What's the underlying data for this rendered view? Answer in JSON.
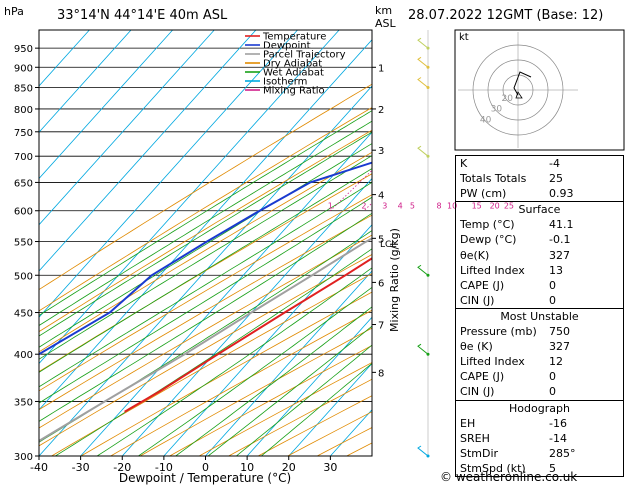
{
  "header": {
    "hpa_label": "hPa",
    "location": "33°14'N  44°14'E  40m  ASL",
    "km_label": "km",
    "asl_label": "ASL",
    "datetime": "28.07.2022  12GMT  (Base: 12)"
  },
  "chart_data": {
    "type": "skew-t",
    "xlabel": "Dewpoint / Temperature (°C)",
    "ylabel_right": "Mixing Ratio (g/kg)",
    "x_ticks": [
      -40,
      -30,
      -20,
      -10,
      0,
      10,
      20,
      30
    ],
    "pressure_ticks": [
      300,
      350,
      400,
      450,
      500,
      550,
      600,
      650,
      700,
      750,
      800,
      850,
      900,
      950
    ],
    "km_ticks": [
      {
        "label": "8",
        "p": 380
      },
      {
        "label": "7",
        "p": 435
      },
      {
        "label": "6",
        "p": 490
      },
      {
        "label": "5",
        "p": 555
      },
      {
        "label": "4",
        "p": 628
      },
      {
        "label": "3",
        "p": 712
      },
      {
        "label": "2",
        "p": 800
      },
      {
        "label": "1",
        "p": 900
      }
    ],
    "lcl_label": "LCL",
    "lcl_p": 548,
    "mixing_ratio_labels": [
      "1",
      "2",
      "3",
      "4",
      "5",
      "8",
      "10",
      "15",
      "20",
      "25"
    ],
    "mixing_ratio_values": [
      1,
      2,
      3,
      4,
      5,
      8,
      10,
      15,
      20,
      25
    ],
    "legend": [
      {
        "name": "Temperature",
        "color": "#e02020"
      },
      {
        "name": "Dewpoint",
        "color": "#1a3ad0"
      },
      {
        "name": "Parcel Trajectory",
        "color": "#a0a0a0"
      },
      {
        "name": "Dry Adiabat",
        "color": "#e08a00"
      },
      {
        "name": "Wet Adiabat",
        "color": "#18a018"
      },
      {
        "name": "Isotherm",
        "color": "#00a8e0"
      },
      {
        "name": "Mixing Ratio",
        "color": "#d0208a"
      }
    ],
    "temperature": [
      {
        "p": 980,
        "t": 41.1
      },
      {
        "p": 950,
        "t": 38
      },
      {
        "p": 900,
        "t": 33
      },
      {
        "p": 850,
        "t": 28
      },
      {
        "p": 800,
        "t": 23
      },
      {
        "p": 750,
        "t": 18
      },
      {
        "p": 700,
        "t": 13
      },
      {
        "p": 650,
        "t": 9.5
      },
      {
        "p": 600,
        "t": 5
      },
      {
        "p": 550,
        "t": 0
      },
      {
        "p": 500,
        "t": -5.5
      },
      {
        "p": 450,
        "t": -12
      },
      {
        "p": 400,
        "t": -19
      },
      {
        "p": 360,
        "t": -25
      },
      {
        "p": 340,
        "t": -29
      }
    ],
    "dewpoint": [
      {
        "p": 980,
        "t": -0.1
      },
      {
        "p": 950,
        "t": -2.5
      },
      {
        "p": 900,
        "t": -6
      },
      {
        "p": 850,
        "t": -11
      },
      {
        "p": 800,
        "t": -16
      },
      {
        "p": 750,
        "t": -17
      },
      {
        "p": 700,
        "t": -20
      },
      {
        "p": 650,
        "t": -34
      },
      {
        "p": 600,
        "t": -40
      },
      {
        "p": 550,
        "t": -46
      },
      {
        "p": 500,
        "t": -52
      },
      {
        "p": 450,
        "t": -54
      },
      {
        "p": 400,
        "t": -62
      },
      {
        "p": 350,
        "t": -72
      },
      {
        "p": 325,
        "t": -66
      },
      {
        "p": 300,
        "t": -56
      }
    ],
    "parcel": [
      {
        "p": 980,
        "t": 41.1
      },
      {
        "p": 900,
        "t": 33
      },
      {
        "p": 800,
        "t": 23
      },
      {
        "p": 700,
        "t": 11
      },
      {
        "p": 600,
        "t": -1
      },
      {
        "p": 548,
        "t": -8
      },
      {
        "p": 500,
        "t": -13.5
      },
      {
        "p": 450,
        "t": -20
      },
      {
        "p": 400,
        "t": -27
      },
      {
        "p": 350,
        "t": -36
      },
      {
        "p": 300,
        "t": -46
      }
    ]
  },
  "hodograph": {
    "label": "kt",
    "ring_labels": [
      "40",
      "30",
      "20"
    ]
  },
  "indices": {
    "rows": [
      {
        "label": "K",
        "value": "-4"
      },
      {
        "label": "Totals Totals",
        "value": "25"
      },
      {
        "label": "PW (cm)",
        "value": "0.93"
      }
    ]
  },
  "surface": {
    "title": "Surface",
    "rows": [
      {
        "label": "Temp (°C)",
        "value": "41.1"
      },
      {
        "label": "Dewp (°C)",
        "value": "-0.1"
      },
      {
        "label": "θe(K)",
        "value": "327"
      },
      {
        "label": "Lifted Index",
        "value": "13"
      },
      {
        "label": "CAPE (J)",
        "value": "0"
      },
      {
        "label": "CIN (J)",
        "value": "0"
      }
    ]
  },
  "most_unstable": {
    "title": "Most Unstable",
    "rows": [
      {
        "label": "Pressure (mb)",
        "value": "750"
      },
      {
        "label": "θe (K)",
        "value": "327"
      },
      {
        "label": "Lifted Index",
        "value": "12"
      },
      {
        "label": "CAPE (J)",
        "value": "0"
      },
      {
        "label": "CIN (J)",
        "value": "0"
      }
    ]
  },
  "hodograph_table": {
    "title": "Hodograph",
    "rows": [
      {
        "label": "EH",
        "value": "-16"
      },
      {
        "label": "SREH",
        "value": "-14"
      },
      {
        "label": "StmDir",
        "value": "285°"
      },
      {
        "label": "StmSpd (kt)",
        "value": "5"
      }
    ]
  },
  "credit": "© weatheronline.co.uk"
}
